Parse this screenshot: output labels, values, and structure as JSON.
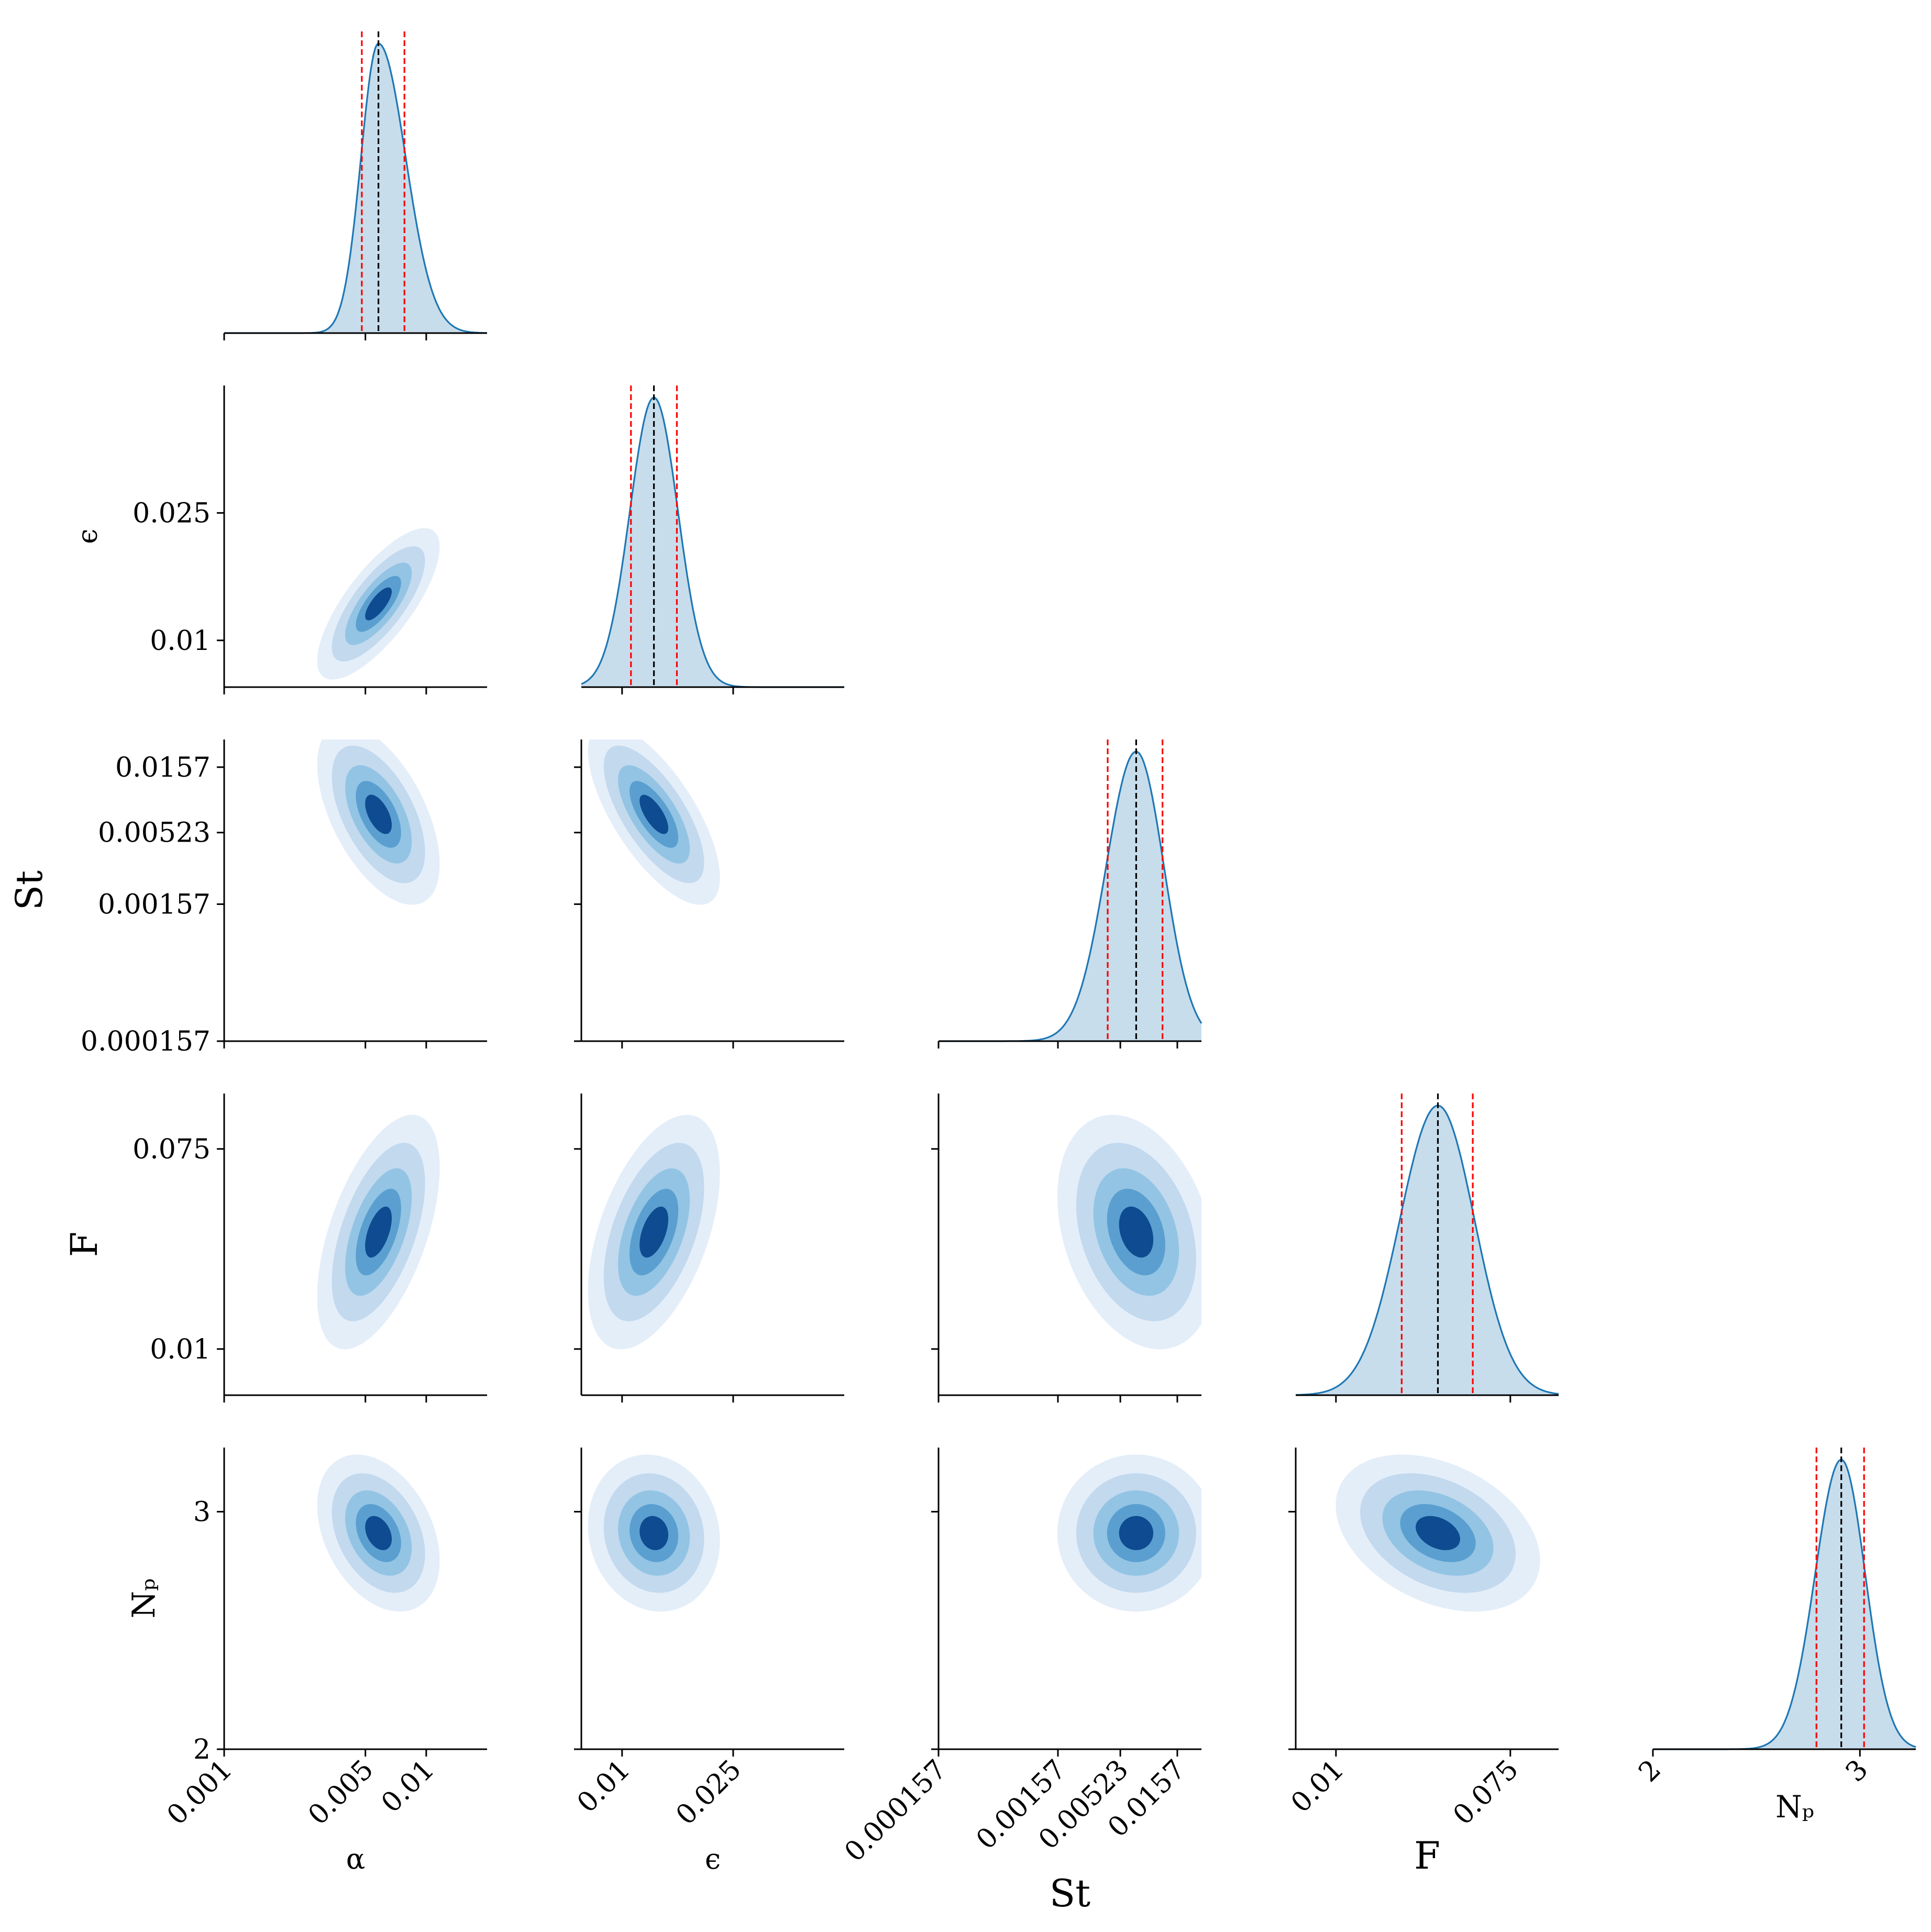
{
  "chart_data": {
    "type": "corner",
    "title": "",
    "colors": {
      "line": "#1f77b4",
      "fill": "#1f77b4",
      "fill_opacity": 0.25,
      "median_line": "#000000",
      "quantile_lines": "#ff0000",
      "contours": [
        "#e4eef9",
        "#c2d9ee",
        "#93c4e4",
        "#5a9fd0",
        "#1b62ab",
        "#0e4b90"
      ]
    },
    "parameters": [
      {
        "key": "alpha",
        "label": "α",
        "scale": "log",
        "range": [
          0.001,
          0.02
        ],
        "ticks": [
          {
            "value": 0.001,
            "label": "0.001"
          },
          {
            "value": 0.005,
            "label": "0.005"
          },
          {
            "value": 0.01,
            "label": "0.01"
          }
        ],
        "median": 0.0058,
        "q16": 0.0048,
        "q84": 0.0078
      },
      {
        "key": "eps",
        "label": "ϵ",
        "scale": "linear",
        "range": [
          0.0045,
          0.04
        ],
        "ticks": [
          {
            "value": 0.01,
            "label": "0.01"
          },
          {
            "value": 0.025,
            "label": "0.025"
          }
        ],
        "median": 0.0143,
        "q16": 0.0112,
        "q84": 0.0174
      },
      {
        "key": "st",
        "label": "St",
        "scale": "log",
        "range": [
          0.000157,
          0.025
        ],
        "ticks": [
          {
            "value": 0.000157,
            "label": "0.000157"
          },
          {
            "value": 0.00157,
            "label": "0.00157"
          },
          {
            "value": 0.00523,
            "label": "0.00523"
          },
          {
            "value": 0.0157,
            "label": "0.0157"
          }
        ],
        "median": 0.0071,
        "q16": 0.0041,
        "q84": 0.0118
      },
      {
        "key": "F",
        "label": "F",
        "scale": "linear",
        "range": [
          -0.005,
          0.093
        ],
        "ticks": [
          {
            "value": 0.01,
            "label": "0.01"
          },
          {
            "value": 0.075,
            "label": "0.075"
          }
        ],
        "median": 0.048,
        "q16": 0.0345,
        "q84": 0.061
      },
      {
        "key": "Np",
        "label": "Nₚ",
        "scale": "linear",
        "range": [
          2.0,
          3.27
        ],
        "ticks": [
          {
            "value": 2,
            "label": "2"
          },
          {
            "value": 3,
            "label": "3"
          }
        ],
        "median": 2.91,
        "q16": 2.79,
        "q84": 3.02
      }
    ],
    "correlations": [
      {
        "x": "alpha",
        "y": "eps",
        "rho": 0.75
      },
      {
        "x": "alpha",
        "y": "st",
        "rho": -0.55
      },
      {
        "x": "alpha",
        "y": "F",
        "rho": 0.55
      },
      {
        "x": "alpha",
        "y": "Np",
        "rho": -0.35
      },
      {
        "x": "eps",
        "y": "st",
        "rho": -0.7
      },
      {
        "x": "eps",
        "y": "F",
        "rho": 0.5
      },
      {
        "x": "eps",
        "y": "Np",
        "rho": -0.1
      },
      {
        "x": "st",
        "y": "F",
        "rho": -0.3
      },
      {
        "x": "st",
        "y": "Np",
        "rho": 0.0
      },
      {
        "x": "F",
        "y": "Np",
        "rho": -0.35
      }
    ]
  }
}
